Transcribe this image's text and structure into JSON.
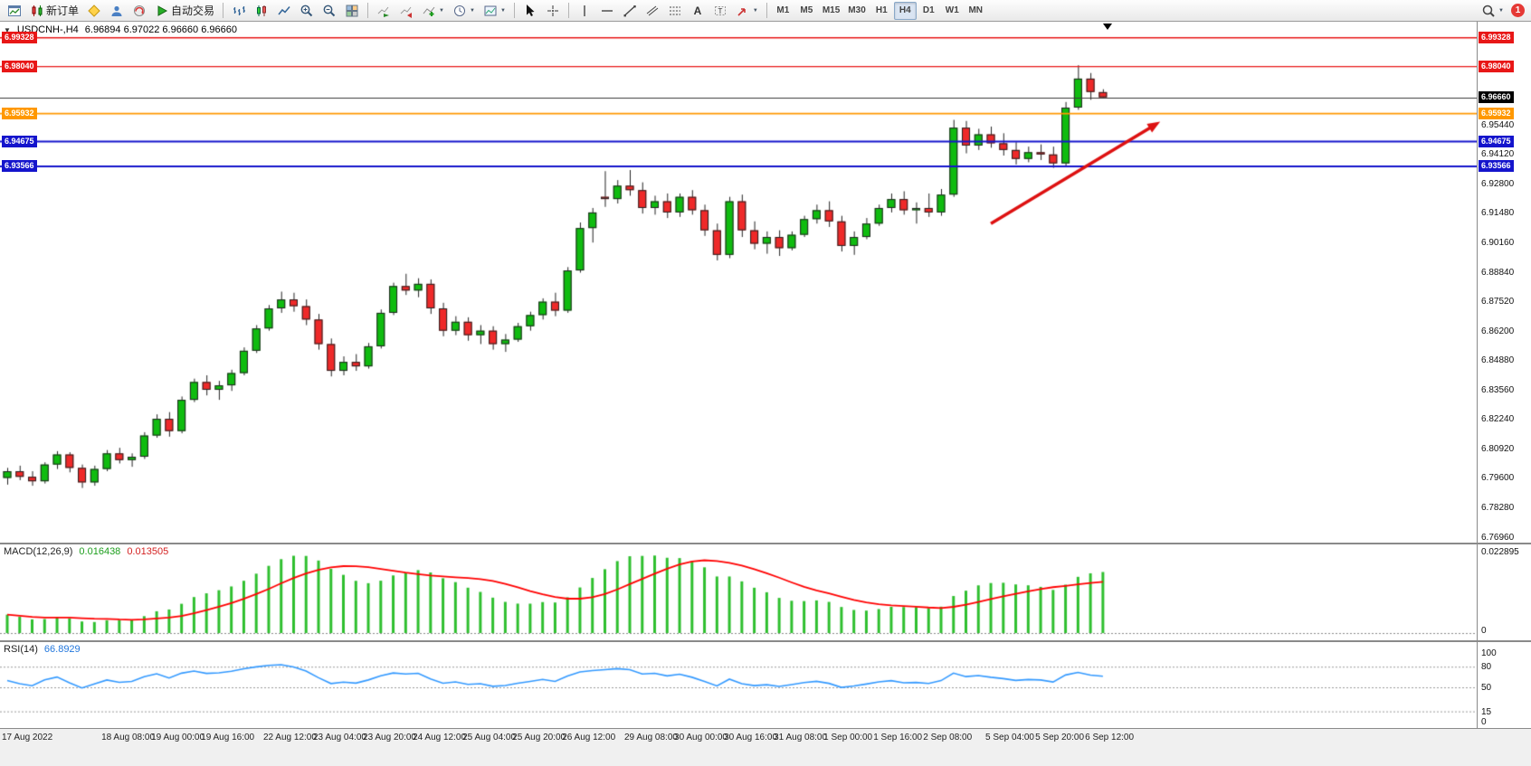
{
  "toolbar": {
    "new_order_label": "新订单",
    "autotrading_label": "自动交易",
    "timeframes": [
      "M1",
      "M5",
      "M15",
      "M30",
      "H1",
      "H4",
      "D1",
      "W1",
      "MN"
    ],
    "active_timeframe": "H4",
    "notification_count": "1",
    "icon_names": [
      "new-chart-icon",
      "new-order-icon",
      "market-diamond-icon",
      "community-person-icon",
      "support-headset-icon",
      "autotrading-play-icon",
      "bar-chart-icon",
      "candlestick-chart-icon",
      "line-chart-icon",
      "zoom-in-icon",
      "zoom-out-icon",
      "tile-windows-icon",
      "auto-scroll-icon",
      "chart-shift-icon",
      "indicators-icon",
      "periods-clock-icon",
      "templates-icon",
      "cursor-icon",
      "crosshair-icon",
      "vertical-line-icon",
      "horizontal-line-icon",
      "trendline-icon",
      "channel-icon",
      "fibonacci-icon",
      "text-icon",
      "text-label-icon",
      "arrows-icon",
      "search-icon"
    ]
  },
  "chart_header": {
    "symbol": "USDCNH-,H4",
    "ohlc": "6.96894 6.97022 6.96660 6.96660"
  },
  "panels": {
    "macd": {
      "name": "MACD(12,26,9)",
      "value_main": "0.016438",
      "value_signal": "0.013505",
      "axis_top": "0.022895",
      "axis_bottom": "0"
    },
    "rsi": {
      "name": "RSI(14)",
      "value": "66.8929",
      "axis_labels": [
        "100",
        "80",
        "50",
        "15",
        "0"
      ]
    }
  },
  "chart_data": {
    "type": "candlestick",
    "symbol": "USDCNH",
    "timeframe": "H4",
    "price_range": [
      6.767,
      7.0005
    ],
    "y_ticks": [
      "6.95440",
      "6.94120",
      "6.92800",
      "6.91480",
      "6.90160",
      "6.88840",
      "6.87520",
      "6.86200",
      "6.84880",
      "6.83560",
      "6.82240",
      "6.80920",
      "6.79600",
      "6.78280",
      "6.76960"
    ],
    "hlines": [
      {
        "price": 6.99328,
        "label": "6.99328",
        "color": "#e81717",
        "width": 1.4
      },
      {
        "price": 6.9804,
        "label": "6.98040",
        "color": "#e81717",
        "width": 1.4
      },
      {
        "price": 6.95932,
        "label": "6.95932",
        "color": "#ff9800",
        "width": 1.6
      },
      {
        "price": 6.94675,
        "label": "6.94675",
        "color": "#1414cc",
        "width": 2
      },
      {
        "price": 6.93566,
        "label": "6.93566",
        "color": "#1414cc",
        "width": 2
      }
    ],
    "current_price": {
      "label": "6.96660",
      "price": 6.9666,
      "color": "#000000"
    },
    "candles": [
      [
        6.796,
        6.8005,
        6.793,
        6.799
      ],
      [
        6.799,
        6.8015,
        6.795,
        6.7965
      ],
      [
        6.7965,
        6.799,
        6.7925,
        6.7945
      ],
      [
        6.7945,
        6.803,
        6.7935,
        6.802
      ],
      [
        6.802,
        6.808,
        6.8,
        6.8065
      ],
      [
        6.8065,
        6.8075,
        6.7985,
        6.8005
      ],
      [
        6.8005,
        6.802,
        6.7915,
        6.794
      ],
      [
        6.794,
        6.8015,
        6.7925,
        6.8
      ],
      [
        6.8,
        6.8085,
        6.799,
        6.807
      ],
      [
        6.807,
        6.8095,
        6.8025,
        6.804
      ],
      [
        6.804,
        6.807,
        6.801,
        6.8055
      ],
      [
        6.8055,
        6.8165,
        6.8045,
        6.815
      ],
      [
        6.815,
        6.8245,
        6.814,
        6.8225
      ],
      [
        6.8225,
        6.8255,
        6.8145,
        6.817
      ],
      [
        6.817,
        6.8325,
        6.816,
        6.831
      ],
      [
        6.831,
        6.8405,
        6.83,
        6.839
      ],
      [
        6.839,
        6.842,
        6.833,
        6.8355
      ],
      [
        6.8355,
        6.8395,
        6.831,
        6.8375
      ],
      [
        6.8375,
        6.8445,
        6.835,
        6.843
      ],
      [
        6.843,
        6.8545,
        6.842,
        6.853
      ],
      [
        6.853,
        6.8645,
        6.852,
        6.863
      ],
      [
        6.863,
        6.8735,
        6.862,
        6.872
      ],
      [
        6.872,
        6.8795,
        6.87,
        6.876
      ],
      [
        6.876,
        6.879,
        6.8705,
        6.873
      ],
      [
        6.873,
        6.876,
        6.8645,
        6.867
      ],
      [
        6.867,
        6.8695,
        6.8535,
        6.856
      ],
      [
        6.856,
        6.8585,
        6.8415,
        6.844
      ],
      [
        6.844,
        6.8505,
        6.842,
        6.848
      ],
      [
        6.848,
        6.8515,
        6.844,
        6.846
      ],
      [
        6.846,
        6.8565,
        6.845,
        6.855
      ],
      [
        6.855,
        6.8715,
        6.854,
        6.87
      ],
      [
        6.87,
        6.8835,
        6.869,
        6.882
      ],
      [
        6.882,
        6.8875,
        6.878,
        6.88
      ],
      [
        6.88,
        6.8855,
        6.877,
        6.883
      ],
      [
        6.883,
        6.885,
        6.8695,
        6.872
      ],
      [
        6.872,
        6.8745,
        6.8595,
        6.862
      ],
      [
        6.862,
        6.8685,
        6.86,
        6.866
      ],
      [
        6.866,
        6.868,
        6.8575,
        6.86
      ],
      [
        6.86,
        6.8645,
        6.856,
        6.862
      ],
      [
        6.862,
        6.864,
        6.8535,
        6.856
      ],
      [
        6.856,
        6.8605,
        6.8525,
        6.858
      ],
      [
        6.858,
        6.8655,
        6.857,
        6.864
      ],
      [
        6.864,
        6.8705,
        6.862,
        6.869
      ],
      [
        6.869,
        6.8765,
        6.867,
        6.875
      ],
      [
        6.875,
        6.879,
        6.8685,
        6.871
      ],
      [
        6.871,
        6.8905,
        6.87,
        6.889
      ],
      [
        6.889,
        6.9105,
        6.888,
        6.908
      ],
      [
        6.908,
        6.917,
        6.9015,
        6.915
      ],
      [
        6.922,
        6.9335,
        6.9175,
        6.921
      ],
      [
        6.921,
        6.9295,
        6.919,
        6.927
      ],
      [
        6.927,
        6.934,
        6.9225,
        6.925
      ],
      [
        6.925,
        6.9285,
        6.9145,
        6.917
      ],
      [
        6.917,
        6.9225,
        6.914,
        6.92
      ],
      [
        6.92,
        6.9235,
        6.9125,
        6.915
      ],
      [
        6.915,
        6.9235,
        6.913,
        6.922
      ],
      [
        6.922,
        6.925,
        6.914,
        6.916
      ],
      [
        6.916,
        6.9185,
        6.9045,
        6.907
      ],
      [
        6.907,
        6.91,
        6.8935,
        6.896
      ],
      [
        6.896,
        6.922,
        6.8945,
        6.92
      ],
      [
        6.92,
        6.923,
        6.904,
        6.907
      ],
      [
        6.907,
        6.911,
        6.8985,
        6.901
      ],
      [
        6.901,
        6.9065,
        6.8965,
        6.904
      ],
      [
        6.904,
        6.907,
        6.8955,
        6.899
      ],
      [
        6.899,
        6.9065,
        6.898,
        6.905
      ],
      [
        6.905,
        6.9135,
        6.904,
        6.912
      ],
      [
        6.912,
        6.9185,
        6.91,
        6.916
      ],
      [
        6.916,
        6.92,
        6.9085,
        6.911
      ],
      [
        6.911,
        6.9135,
        6.8975,
        6.9
      ],
      [
        6.9,
        6.9065,
        6.896,
        6.904
      ],
      [
        6.904,
        6.9125,
        6.903,
        6.91
      ],
      [
        6.91,
        6.9185,
        6.909,
        6.917
      ],
      [
        6.917,
        6.9235,
        6.915,
        6.921
      ],
      [
        6.921,
        6.9245,
        6.914,
        6.916
      ],
      [
        6.916,
        6.9195,
        6.91,
        6.917
      ],
      [
        6.917,
        6.9235,
        6.913,
        6.915
      ],
      [
        6.915,
        6.9255,
        6.9135,
        6.923
      ],
      [
        6.923,
        6.9565,
        6.922,
        6.953
      ],
      [
        6.953,
        6.956,
        6.9415,
        6.945
      ],
      [
        6.945,
        6.9525,
        6.943,
        6.95
      ],
      [
        6.95,
        6.9535,
        6.944,
        6.946
      ],
      [
        6.946,
        6.9505,
        6.9405,
        6.943
      ],
      [
        6.943,
        6.9465,
        6.9365,
        6.939
      ],
      [
        6.939,
        6.9445,
        6.9375,
        6.942
      ],
      [
        6.942,
        6.9455,
        6.9385,
        6.941
      ],
      [
        6.941,
        6.9445,
        6.935,
        6.937
      ],
      [
        6.937,
        6.9645,
        6.9355,
        6.962
      ],
      [
        6.962,
        6.981,
        6.961,
        6.975
      ],
      [
        6.975,
        6.9775,
        6.9655,
        6.969
      ],
      [
        6.96894,
        6.97022,
        6.9666,
        6.9666
      ]
    ],
    "time_labels": [
      {
        "idx": 0,
        "text": "17 Aug 2022"
      },
      {
        "idx": 8,
        "text": "18 Aug 08:00"
      },
      {
        "idx": 12,
        "text": "19 Aug 00:00"
      },
      {
        "idx": 16,
        "text": "19 Aug 16:00"
      },
      {
        "idx": 21,
        "text": "22 Aug 12:00"
      },
      {
        "idx": 25,
        "text": "23 Aug 04:00"
      },
      {
        "idx": 29,
        "text": "23 Aug 20:00"
      },
      {
        "idx": 33,
        "text": "24 Aug 12:00"
      },
      {
        "idx": 37,
        "text": "25 Aug 04:00"
      },
      {
        "idx": 41,
        "text": "25 Aug 20:00"
      },
      {
        "idx": 45,
        "text": "26 Aug 12:00"
      },
      {
        "idx": 50,
        "text": "29 Aug 08:00"
      },
      {
        "idx": 54,
        "text": "30 Aug 00:00"
      },
      {
        "idx": 58,
        "text": "30 Aug 16:00"
      },
      {
        "idx": 62,
        "text": "31 Aug 08:00"
      },
      {
        "idx": 66,
        "text": "1 Sep 00:00"
      },
      {
        "idx": 70,
        "text": "1 Sep 16:00"
      },
      {
        "idx": 74,
        "text": "2 Sep 08:00"
      },
      {
        "idx": 79,
        "text": "5 Sep 04:00"
      },
      {
        "idx": 83,
        "text": "5 Sep 20:00"
      },
      {
        "idx": 87,
        "text": "6 Sep 12:00"
      }
    ],
    "indicators": {
      "macd": {
        "fast": 12,
        "slow": 26,
        "signal": 9
      },
      "rsi": {
        "period": 14,
        "levels": [
          80,
          50,
          15
        ]
      }
    },
    "annotation_arrow": {
      "from_idx": 79,
      "from_price": 6.91,
      "to_idx": 92.6,
      "to_price": 6.9557,
      "color": "#dd1111"
    },
    "shift_marker_idx": 88.4,
    "colors": {
      "up": "#0fbc0f",
      "down": "#ef2929",
      "border": "#222222",
      "macd_bar": "#2fbf2f",
      "macd_signal": "#ff0000",
      "rsi_line": "#3399ff"
    }
  }
}
